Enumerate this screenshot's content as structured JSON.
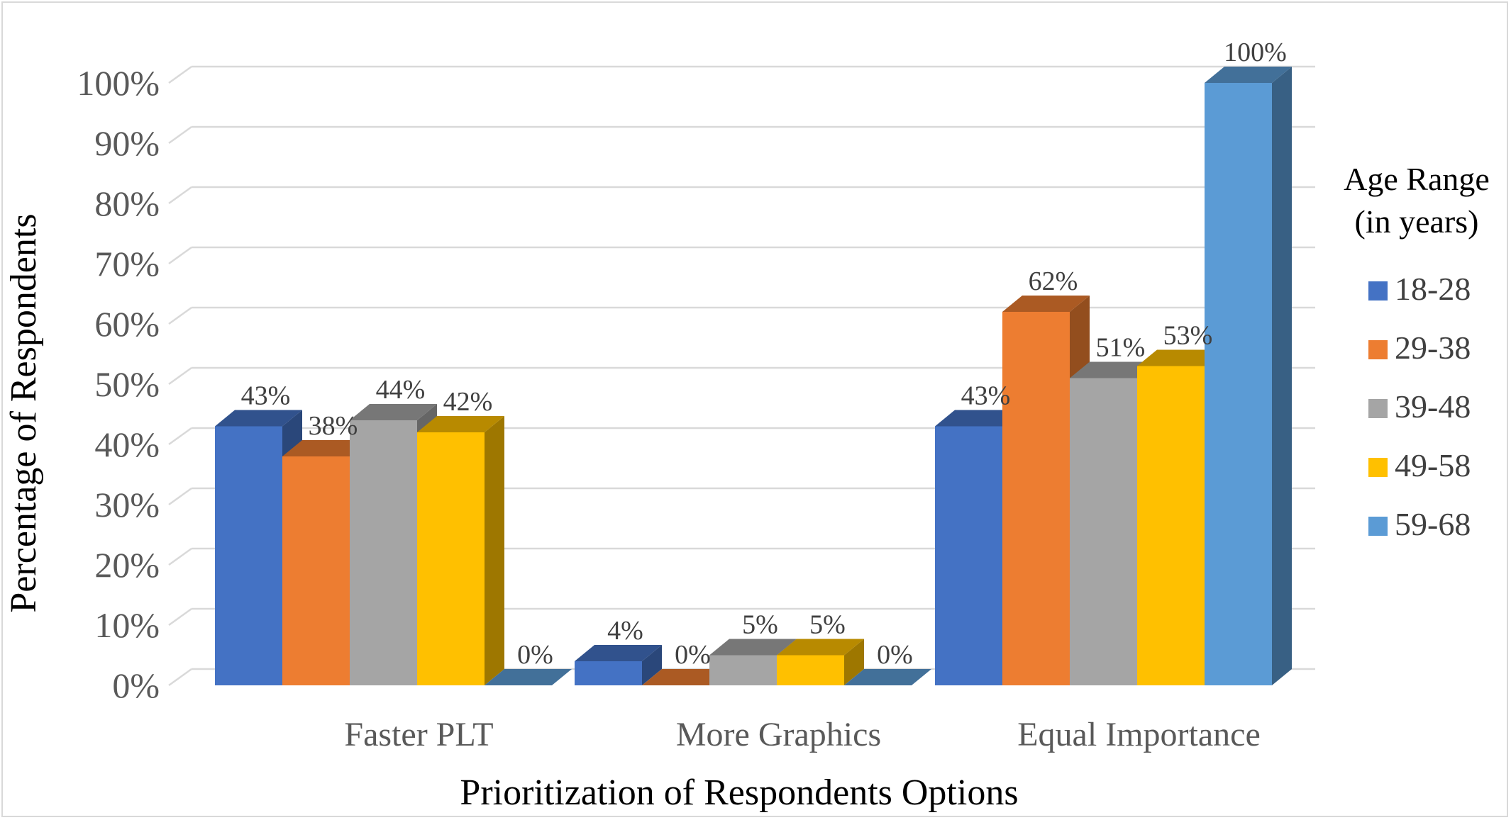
{
  "chart_data": {
    "type": "bar",
    "style": "3d-clustered-column",
    "categories": [
      "Faster PLT",
      "More Graphics",
      "Equal Importance"
    ],
    "series": [
      {
        "name": "18-28",
        "color": "#4472C4",
        "values": [
          43,
          4,
          43
        ]
      },
      {
        "name": "29-38",
        "color": "#ED7D31",
        "values": [
          38,
          0,
          62
        ]
      },
      {
        "name": "39-48",
        "color": "#A5A5A5",
        "values": [
          44,
          5,
          51
        ]
      },
      {
        "name": "49-58",
        "color": "#FFC000",
        "values": [
          42,
          5,
          53
        ]
      },
      {
        "name": "59-68",
        "color": "#5B9BD5",
        "values": [
          0,
          0,
          100
        ]
      }
    ],
    "value_labels": [
      [
        "43%",
        "4%",
        "43%"
      ],
      [
        "38%",
        "0%",
        "62%"
      ],
      [
        "44%",
        "5%",
        "51%"
      ],
      [
        "42%",
        "5%",
        "53%"
      ],
      [
        "0%",
        "0%",
        "100%"
      ]
    ],
    "y_ticks": [
      "0%",
      "10%",
      "20%",
      "30%",
      "40%",
      "50%",
      "60%",
      "70%",
      "80%",
      "90%",
      "100%"
    ],
    "ylim": [
      0,
      100
    ],
    "xlabel": "Prioritization of Respondents Options",
    "ylabel": "Percentage of Respondents",
    "legend": {
      "title_line1": "Age Range",
      "title_line2": "(in years)",
      "position": "right"
    },
    "grid": true
  }
}
